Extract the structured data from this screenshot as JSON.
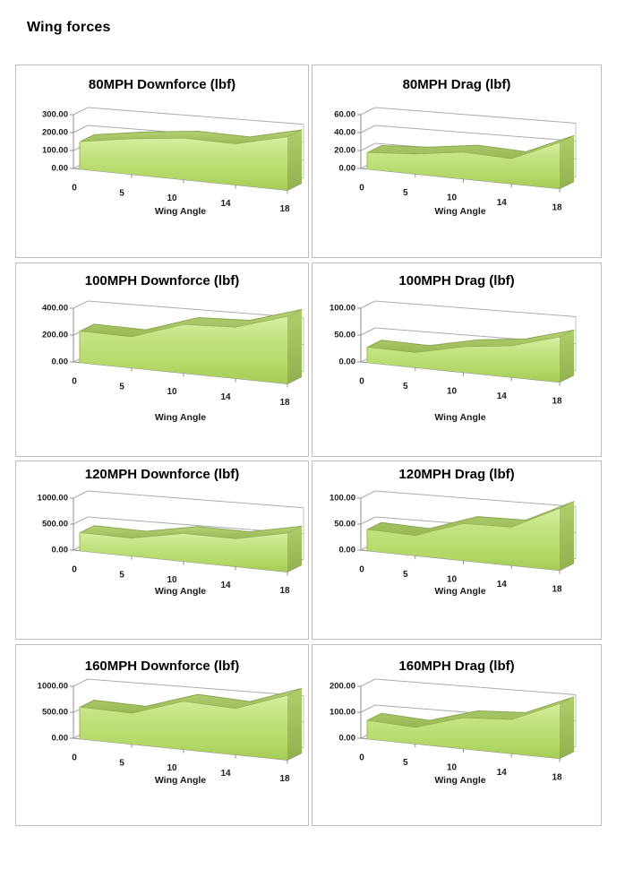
{
  "page": {
    "title": "Wing forces"
  },
  "colors": {
    "area_fill_light": "#d8eea0",
    "area_fill_mid": "#c3e382",
    "area_fill_dark": "#a5cc55",
    "area_top_surface": "#9cba58",
    "area_side_face": "#92b04c",
    "area_edge_line": "#8aa54c",
    "grid_line": "#ababab",
    "axis_line": "#8e8e8e",
    "label_text": "#1a1a1a",
    "cell_border": "#bdbdbd"
  },
  "chart_data": [
    {
      "type": "area",
      "title": "80MPH Downforce (lbf)",
      "xlabel": "Wing Angle",
      "categories": [
        "0",
        "5",
        "10",
        "14",
        "18"
      ],
      "values": [
        150,
        180,
        195,
        180,
        220
      ],
      "ylim": [
        0,
        300
      ],
      "yticks": [
        "0.00",
        "100.00",
        "200.00",
        "300.00"
      ],
      "grid": true,
      "legend": "none"
    },
    {
      "type": "area",
      "title": "80MPH Drag (lbf)",
      "xlabel": "Wing Angle",
      "categories": [
        "0",
        "5",
        "10",
        "14",
        "18"
      ],
      "values": [
        18,
        20,
        25,
        22,
        38
      ],
      "ylim": [
        0,
        60
      ],
      "yticks": [
        "0.00",
        "20.00",
        "40.00",
        "60.00"
      ],
      "grid": true,
      "legend": "none"
    },
    {
      "type": "area",
      "title": "100MPH Downforce (lbf)",
      "xlabel": "Wing Angle",
      "categories": [
        "0",
        "5",
        "10",
        "14",
        "18"
      ],
      "values": [
        230,
        210,
        305,
        300,
        370
      ],
      "ylim": [
        0,
        400
      ],
      "yticks": [
        "0.00",
        "200.00",
        "400.00"
      ],
      "grid": true,
      "legend": "none"
    },
    {
      "type": "area",
      "title": "100MPH Drag (lbf)",
      "xlabel": "Wing Angle",
      "categories": [
        "0",
        "5",
        "10",
        "14",
        "18"
      ],
      "values": [
        28,
        25,
        40,
        46,
        62
      ],
      "ylim": [
        0,
        100
      ],
      "yticks": [
        "0.00",
        "50.00",
        "100.00"
      ],
      "grid": true,
      "legend": "none"
    },
    {
      "type": "area",
      "title": "120MPH Downforce (lbf)",
      "xlabel": "Wing Angle",
      "categories": [
        "0",
        "5",
        "10",
        "14",
        "18"
      ],
      "values": [
        340,
        310,
        450,
        420,
        550
      ],
      "ylim": [
        0,
        1000
      ],
      "yticks": [
        "0.00",
        "500.00",
        "1000.00"
      ],
      "grid": true,
      "legend": "none"
    },
    {
      "type": "area",
      "title": "120MPH Drag (lbf)",
      "xlabel": "Wing Angle",
      "categories": [
        "0",
        "5",
        "10",
        "14",
        "18"
      ],
      "values": [
        40,
        35,
        60,
        58,
        88
      ],
      "ylim": [
        0,
        100
      ],
      "yticks": [
        "0.00",
        "50.00",
        "100.00"
      ],
      "grid": true,
      "legend": "none"
    },
    {
      "type": "area",
      "title": "160MPH Downforce (lbf)",
      "xlabel": "Wing Angle",
      "categories": [
        "0",
        "5",
        "10",
        "14",
        "18"
      ],
      "values": [
        600,
        540,
        780,
        700,
        920
      ],
      "ylim": [
        0,
        1000
      ],
      "yticks": [
        "0.00",
        "500.00",
        "1000.00"
      ],
      "grid": true,
      "legend": "none"
    },
    {
      "type": "area",
      "title": "160MPH Drag (lbf)",
      "xlabel": "Wing Angle",
      "categories": [
        "0",
        "5",
        "10",
        "14",
        "18"
      ],
      "values": [
        70,
        57,
        100,
        103,
        155
      ],
      "ylim": [
        0,
        200
      ],
      "yticks": [
        "0.00",
        "100.00",
        "200.00"
      ],
      "grid": true,
      "legend": "none"
    }
  ]
}
